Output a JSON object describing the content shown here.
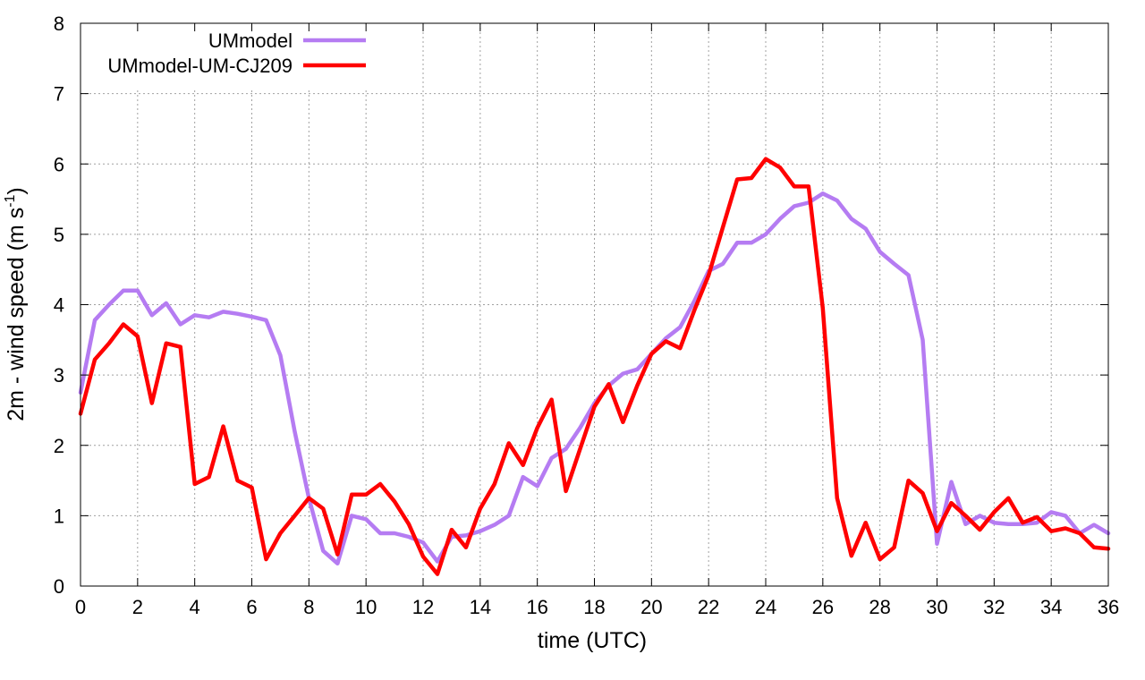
{
  "chart_data": {
    "type": "line",
    "xlabel": "time (UTC)",
    "ylabel_main": "2m - wind speed  (m s",
    "ylabel_sup": "-1",
    "ylabel_close": ")",
    "xlim": [
      0,
      36
    ],
    "ylim": [
      0,
      8
    ],
    "xticks": [
      0,
      2,
      4,
      6,
      8,
      10,
      12,
      14,
      16,
      18,
      20,
      22,
      24,
      26,
      28,
      30,
      32,
      34,
      36
    ],
    "yticks": [
      0,
      1,
      2,
      3,
      4,
      5,
      6,
      7,
      8
    ],
    "grid": true,
    "legend_position": "top-left",
    "series": [
      {
        "name": "UMmodel",
        "color": "#b57cf2",
        "x": [
          0,
          0.5,
          1,
          1.5,
          2,
          2.5,
          3,
          3.5,
          4,
          4.5,
          5,
          5.5,
          6,
          6.5,
          7,
          7.5,
          8,
          8.5,
          9,
          9.5,
          10,
          10.5,
          11,
          11.5,
          12,
          12.5,
          13,
          13.5,
          14,
          14.5,
          15,
          15.5,
          16,
          16.5,
          17,
          17.5,
          18,
          18.5,
          19,
          19.5,
          20,
          20.5,
          21,
          21.5,
          22,
          22.5,
          23,
          23.5,
          24,
          24.5,
          25,
          25.5,
          26,
          26.5,
          27,
          27.5,
          28,
          28.5,
          29,
          29.5,
          30,
          30.5,
          31,
          31.5,
          32,
          32.5,
          33,
          33.5,
          34,
          34.5,
          35,
          35.5,
          36
        ],
        "y": [
          2.75,
          3.78,
          4.0,
          4.2,
          4.2,
          3.85,
          4.02,
          3.72,
          3.85,
          3.82,
          3.9,
          3.87,
          3.83,
          3.78,
          3.28,
          2.2,
          1.25,
          0.5,
          0.32,
          1.0,
          0.95,
          0.75,
          0.75,
          0.7,
          0.62,
          0.35,
          0.7,
          0.72,
          0.78,
          0.87,
          1.0,
          1.55,
          1.42,
          1.82,
          1.95,
          2.25,
          2.6,
          2.85,
          3.02,
          3.08,
          3.3,
          3.52,
          3.68,
          4.05,
          4.48,
          4.58,
          4.88,
          4.88,
          5.0,
          5.22,
          5.4,
          5.45,
          5.58,
          5.48,
          5.22,
          5.08,
          4.75,
          4.58,
          4.42,
          3.5,
          0.6,
          1.48,
          0.88,
          1.0,
          0.9,
          0.88,
          0.88,
          0.9,
          1.05,
          1.0,
          0.75,
          0.87,
          0.75
        ]
      },
      {
        "name": "UMmodel-UM-CJ209",
        "color": "#ff0000",
        "x": [
          0,
          0.5,
          1,
          1.5,
          2,
          2.5,
          3,
          3.5,
          4,
          4.5,
          5,
          5.5,
          6,
          6.5,
          7,
          7.5,
          8,
          8.5,
          9,
          9.5,
          10,
          10.5,
          11,
          11.5,
          12,
          12.5,
          13,
          13.5,
          14,
          14.5,
          15,
          15.5,
          16,
          16.5,
          17,
          17.5,
          18,
          18.5,
          19,
          19.5,
          20,
          20.5,
          21,
          21.5,
          22,
          22.5,
          23,
          23.5,
          24,
          24.5,
          25,
          25.5,
          26,
          26.5,
          27,
          27.5,
          28,
          28.5,
          29,
          29.5,
          30,
          30.5,
          31,
          31.5,
          32,
          32.5,
          33,
          33.5,
          34,
          34.5,
          35,
          35.5,
          36
        ],
        "y": [
          2.45,
          3.22,
          3.45,
          3.72,
          3.55,
          2.6,
          3.45,
          3.4,
          1.45,
          1.55,
          2.27,
          1.5,
          1.4,
          0.38,
          0.75,
          1.0,
          1.25,
          1.1,
          0.45,
          1.3,
          1.3,
          1.45,
          1.2,
          0.88,
          0.42,
          0.17,
          0.8,
          0.55,
          1.1,
          1.45,
          2.03,
          1.72,
          2.25,
          2.65,
          1.35,
          1.95,
          2.55,
          2.87,
          2.33,
          2.85,
          3.3,
          3.48,
          3.38,
          3.92,
          4.42,
          5.1,
          5.78,
          5.8,
          6.07,
          5.95,
          5.68,
          5.68,
          3.95,
          1.25,
          0.43,
          0.9,
          0.38,
          0.55,
          1.5,
          1.32,
          0.78,
          1.18,
          1.0,
          0.8,
          1.05,
          1.25,
          0.9,
          0.98,
          0.78,
          0.82,
          0.75,
          0.55,
          0.53
        ]
      }
    ]
  }
}
